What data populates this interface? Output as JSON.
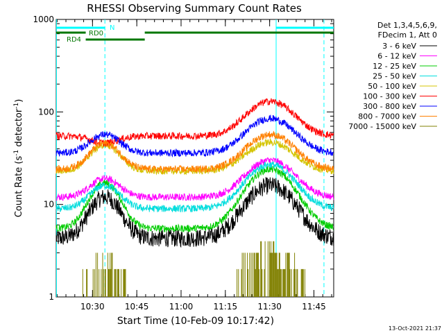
{
  "chart_data": {
    "type": "line",
    "title": "RHESSI Observing Summary Count Rates",
    "xlabel": "Start Time (10-Feb-09 10:17:42)",
    "ylabel_main": "Count Rate (s",
    "ylabel_sup1": "-1",
    "ylabel_mid": " detector",
    "ylabel_sup2": "-1",
    "ylabel_end": ")",
    "y_scale": "log",
    "ylim": [
      1,
      1000
    ],
    "y_ticks": [
      {
        "value": 1,
        "label": "1"
      },
      {
        "value": 10,
        "label": "10"
      },
      {
        "value": 100,
        "label": "100"
      },
      {
        "value": 1000,
        "label": "1000"
      }
    ],
    "xlim_minutes_after_start": [
      0,
      94
    ],
    "x_ticks": [
      {
        "value": 12.3,
        "label": "10:30"
      },
      {
        "value": 27.3,
        "label": "10:45"
      },
      {
        "value": 42.3,
        "label": "11:00"
      },
      {
        "value": 57.3,
        "label": "11:15"
      },
      {
        "value": 72.3,
        "label": "11:30"
      },
      {
        "value": 87.3,
        "label": "11:45"
      }
    ],
    "legend_position": "right",
    "legend_header": [
      "Det 1,3,4,5,6,9,",
      "FDecim 1, Att 0"
    ],
    "series": [
      {
        "name": "3 - 6 keV",
        "color": "#000000",
        "base": 4.3,
        "peak": 12,
        "peak2": 16
      },
      {
        "name": "6 - 12 keV",
        "color": "#ff00ff",
        "base": 12,
        "peak": 19,
        "peak2": 30
      },
      {
        "name": "12 - 25 keV",
        "color": "#00cc00",
        "base": 5.5,
        "peak": 17,
        "peak2": 24
      },
      {
        "name": "25 - 50 keV",
        "color": "#00dddd",
        "base": 9,
        "peak": 16,
        "peak2": 27
      },
      {
        "name": "50 - 100 keV",
        "color": "#d4c400",
        "base": 23,
        "peak": 44,
        "peak2": 47
      },
      {
        "name": "100 - 300 keV",
        "color": "#ff0000",
        "base": 55,
        "peak": 46,
        "peak2": 130
      },
      {
        "name": "300 - 800 keV",
        "color": "#0000ff",
        "base": 36,
        "peak": 57,
        "peak2": 85
      },
      {
        "name": "800 - 7000 keV",
        "color": "#ff8000",
        "base": 24,
        "peak": 46,
        "peak2": 57
      },
      {
        "name": "7000 - 15000 keV",
        "color": "#808000",
        "base": 1,
        "peak": 2.5,
        "peak2": 3.5
      }
    ],
    "flags": [
      {
        "label": "N",
        "color": "#00ffff"
      },
      {
        "label": "RD0",
        "color": "#007700"
      },
      {
        "label": "RD4",
        "color": "#007700"
      }
    ],
    "footer_date": "13-Oct-2021 21:37"
  }
}
